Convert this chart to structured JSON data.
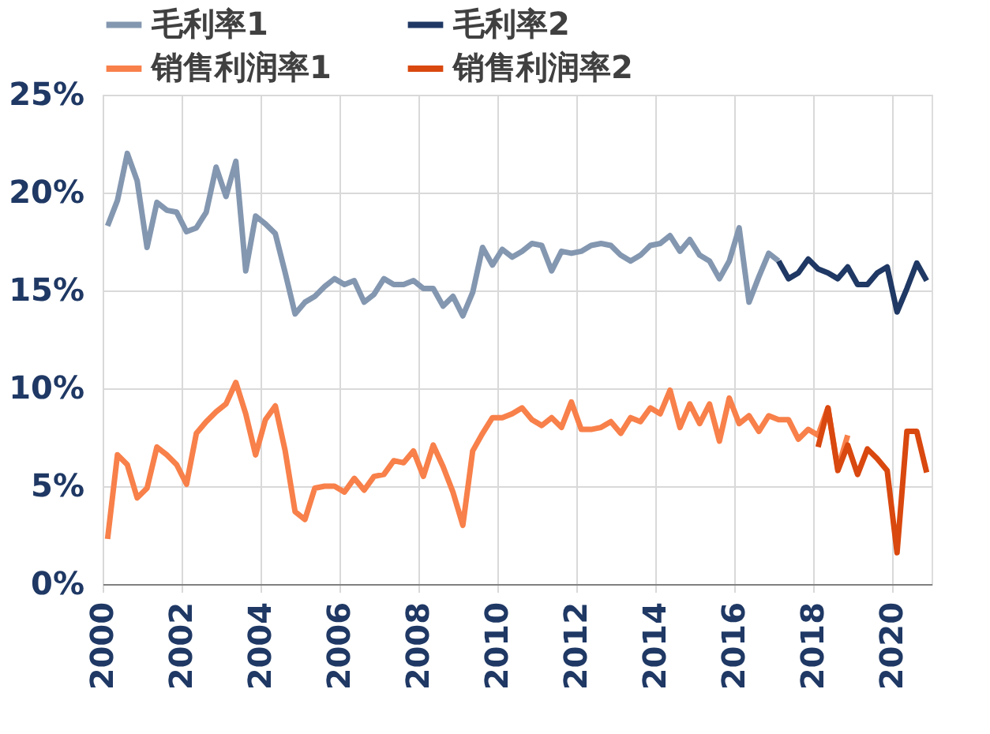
{
  "chart_data": {
    "type": "line",
    "x": [
      2000.125,
      2000.375,
      2000.625,
      2000.875,
      2001.125,
      2001.375,
      2001.625,
      2001.875,
      2002.125,
      2002.375,
      2002.625,
      2002.875,
      2003.125,
      2003.375,
      2003.625,
      2003.875,
      2004.125,
      2004.375,
      2004.625,
      2004.875,
      2005.125,
      2005.375,
      2005.625,
      2005.875,
      2006.125,
      2006.375,
      2006.625,
      2006.875,
      2007.125,
      2007.375,
      2007.625,
      2007.875,
      2008.125,
      2008.375,
      2008.625,
      2008.875,
      2009.125,
      2009.375,
      2009.625,
      2009.875,
      2010.125,
      2010.375,
      2010.625,
      2010.875,
      2011.125,
      2011.375,
      2011.625,
      2011.875,
      2012.125,
      2012.375,
      2012.625,
      2012.875,
      2013.125,
      2013.375,
      2013.625,
      2013.875,
      2014.125,
      2014.375,
      2014.625,
      2014.875,
      2015.125,
      2015.375,
      2015.625,
      2015.875,
      2016.125,
      2016.375,
      2016.625,
      2016.875,
      2017.125,
      2017.375,
      2017.625,
      2017.875,
      2018.125,
      2018.375,
      2018.625,
      2018.875,
      2019.125,
      2019.375,
      2019.625,
      2019.875,
      2020.125,
      2020.375,
      2020.625,
      2020.875
    ],
    "series": [
      {
        "name": "毛利率1",
        "color": "#8497b0",
        "values": [
          18.3,
          19.6,
          22.0,
          20.6,
          17.2,
          19.5,
          19.1,
          19.0,
          18.0,
          18.2,
          19.0,
          21.3,
          19.8,
          21.6,
          16.0,
          18.8,
          18.4,
          17.9,
          15.9,
          13.8,
          14.4,
          14.7,
          15.2,
          15.6,
          15.3,
          15.5,
          14.4,
          14.8,
          15.6,
          15.3,
          15.3,
          15.5,
          15.1,
          15.1,
          14.2,
          14.7,
          13.7,
          14.9,
          17.2,
          16.3,
          17.1,
          16.7,
          17.0,
          17.4,
          17.3,
          16.0,
          17.0,
          16.9,
          17.0,
          17.3,
          17.4,
          17.3,
          16.8,
          16.5,
          16.8,
          17.3,
          17.4,
          17.8,
          17.0,
          17.6,
          16.8,
          16.5,
          15.6,
          16.5,
          18.2,
          14.4,
          15.7,
          16.9,
          16.5,
          null,
          null,
          null,
          null,
          null,
          null,
          null,
          null,
          null,
          null,
          null,
          null,
          null,
          null,
          null
        ]
      },
      {
        "name": "毛利率2",
        "color": "#1f3864",
        "values": [
          null,
          null,
          null,
          null,
          null,
          null,
          null,
          null,
          null,
          null,
          null,
          null,
          null,
          null,
          null,
          null,
          null,
          null,
          null,
          null,
          null,
          null,
          null,
          null,
          null,
          null,
          null,
          null,
          null,
          null,
          null,
          null,
          null,
          null,
          null,
          null,
          null,
          null,
          null,
          null,
          null,
          null,
          null,
          null,
          null,
          null,
          null,
          null,
          null,
          null,
          null,
          null,
          null,
          null,
          null,
          null,
          null,
          null,
          null,
          null,
          null,
          null,
          null,
          null,
          null,
          null,
          null,
          null,
          16.5,
          15.6,
          15.9,
          16.6,
          16.1,
          15.9,
          15.6,
          16.2,
          15.3,
          15.3,
          15.9,
          16.2,
          13.9,
          15.1,
          16.4,
          15.5
        ]
      },
      {
        "name": "销售利润率1",
        "color": "#f8804a",
        "values": [
          2.3,
          6.6,
          6.1,
          4.4,
          4.9,
          7.0,
          6.6,
          6.1,
          5.1,
          7.7,
          8.3,
          8.8,
          9.2,
          10.3,
          8.7,
          6.6,
          8.4,
          9.1,
          6.8,
          3.7,
          3.3,
          4.9,
          5.0,
          5.0,
          4.7,
          5.4,
          4.8,
          5.5,
          5.6,
          6.3,
          6.2,
          6.8,
          5.5,
          7.1,
          6.0,
          4.7,
          3.0,
          6.8,
          7.7,
          8.5,
          8.5,
          8.7,
          9.0,
          8.4,
          8.1,
          8.5,
          8.0,
          9.3,
          7.9,
          7.9,
          8.0,
          8.3,
          7.7,
          8.5,
          8.3,
          9.0,
          8.7,
          9.9,
          8.0,
          9.2,
          8.2,
          9.2,
          7.3,
          9.5,
          8.2,
          8.6,
          7.8,
          8.6,
          8.4,
          8.4,
          7.4,
          7.9,
          7.6,
          9.0,
          5.9,
          7.6,
          null,
          null,
          null,
          null,
          null,
          null,
          null,
          null
        ]
      },
      {
        "name": "销售利润率2",
        "color": "#d9480f",
        "values": [
          null,
          null,
          null,
          null,
          null,
          null,
          null,
          null,
          null,
          null,
          null,
          null,
          null,
          null,
          null,
          null,
          null,
          null,
          null,
          null,
          null,
          null,
          null,
          null,
          null,
          null,
          null,
          null,
          null,
          null,
          null,
          null,
          null,
          null,
          null,
          null,
          null,
          null,
          null,
          null,
          null,
          null,
          null,
          null,
          null,
          null,
          null,
          null,
          null,
          null,
          null,
          null,
          null,
          null,
          null,
          null,
          null,
          null,
          null,
          null,
          null,
          null,
          null,
          null,
          null,
          null,
          null,
          null,
          null,
          null,
          null,
          null,
          7.0,
          9.0,
          5.8,
          7.1,
          5.6,
          6.9,
          6.4,
          5.8,
          1.6,
          7.8,
          7.8,
          5.7
        ]
      }
    ],
    "xlim": [
      2000,
      2021
    ],
    "xticks": [
      2000,
      2002,
      2004,
      2006,
      2008,
      2010,
      2012,
      2014,
      2016,
      2018,
      2020
    ],
    "ylim": [
      0,
      25
    ],
    "yticks": [
      {
        "value": 0,
        "label": "0%"
      },
      {
        "value": 5,
        "label": "5%"
      },
      {
        "value": 10,
        "label": "10%"
      },
      {
        "value": 15,
        "label": "15%"
      },
      {
        "value": 20,
        "label": "20%"
      },
      {
        "value": 25,
        "label": "25%"
      }
    ],
    "grid": true,
    "legend": "top",
    "line_style": "solid",
    "marker": "none"
  }
}
